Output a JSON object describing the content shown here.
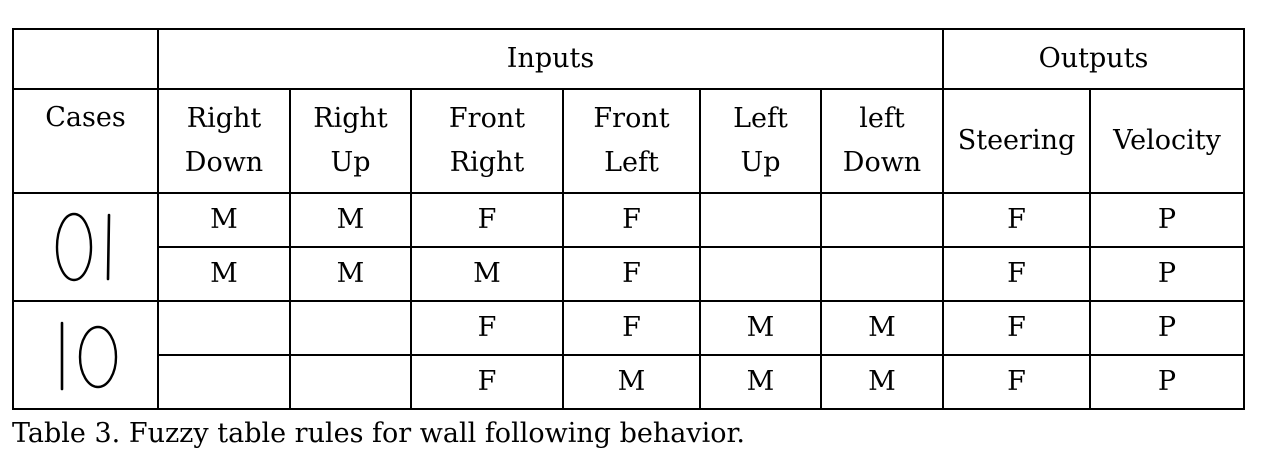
{
  "table": {
    "group_headers": {
      "inputs": "Inputs",
      "outputs": "Outputs"
    },
    "cases_header": "Cases",
    "columns": [
      {
        "line1": "Right",
        "line2": "Down"
      },
      {
        "line1": "Right",
        "line2": "Up"
      },
      {
        "line1": "Front",
        "line2": "Right"
      },
      {
        "line1": "Front",
        "line2": "Left"
      },
      {
        "line1": "Left",
        "line2": "Up"
      },
      {
        "line1": "left",
        "line2": "Down"
      }
    ],
    "output_columns": [
      "Steering",
      "Velocity"
    ],
    "cases": [
      {
        "label": "01",
        "rows": [
          [
            "M",
            "M",
            "F",
            "F",
            "",
            "",
            "F",
            "P"
          ],
          [
            "M",
            "M",
            "M",
            "F",
            "",
            "",
            "F",
            "P"
          ]
        ]
      },
      {
        "label": "10",
        "rows": [
          [
            "",
            "",
            "F",
            "F",
            "M",
            "M",
            "F",
            "P"
          ],
          [
            "",
            "",
            "F",
            "M",
            "M",
            "M",
            "F",
            "P"
          ]
        ]
      }
    ]
  },
  "caption": "Table 3. Fuzzy table rules for wall following behavior."
}
